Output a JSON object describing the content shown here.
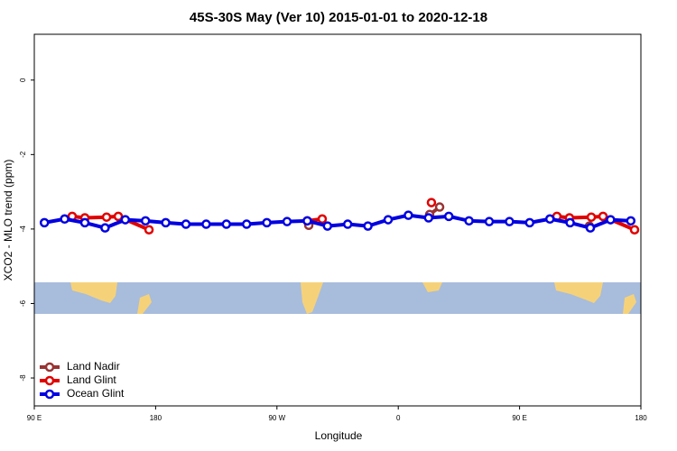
{
  "chart_data": {
    "type": "line",
    "title": "45S-30S May (Ver 10)   2015-01-01 to 2020-12-18",
    "x_label": "Longitude",
    "y_label": "XCO2 - MLO trend (ppm)",
    "xlim": [
      90,
      540
    ],
    "xticks": [
      {
        "value": 90,
        "label": "90 E"
      },
      {
        "value": 180,
        "label": "180"
      },
      {
        "value": 270,
        "label": "90 W"
      },
      {
        "value": 360,
        "label": "0"
      },
      {
        "value": 450,
        "label": "90 E"
      },
      {
        "value": 540,
        "label": "180"
      }
    ],
    "ylim": [
      -8.75,
      1.23
    ],
    "yticks": [
      0,
      -2,
      -4,
      -6,
      -8
    ],
    "legend": "bottom-left",
    "series": [
      {
        "name": "Land Nadir",
        "color": "#993333",
        "x": [
          293.6,
          null,
          383.3,
          390.7,
          null,
          501.8
        ],
        "values": [
          -3.9,
          null,
          -3.61,
          -3.41,
          null,
          -3.92
        ]
      },
      {
        "name": "Land Glint",
        "color": "#e00000",
        "x": [
          118.1,
          127.5,
          143.6,
          152.3,
          175.1,
          null,
          292.5,
          303.6,
          null,
          384.6,
          null,
          477.7,
          487,
          503.2,
          511.9,
          535.3
        ],
        "values": [
          -3.66,
          -3.7,
          -3.68,
          -3.66,
          -4.02,
          null,
          -3.78,
          -3.73,
          null,
          -3.29,
          null,
          -3.66,
          -3.7,
          -3.68,
          -3.66,
          -4.02
        ]
      },
      {
        "name": "Ocean Glint",
        "color": "#0000e0",
        "x": [
          97.5,
          112.5,
          127.5,
          142.5,
          157.5,
          172.5,
          187.5,
          202.5,
          217.5,
          232.5,
          247.5,
          262.5,
          277.5,
          292.5,
          307.5,
          322.5,
          337.5,
          352.5,
          367.5,
          382.5,
          397.5,
          412.5,
          427.5,
          442.5,
          457.5,
          472.5,
          487.5,
          502.5,
          517.5,
          532.5
        ],
        "values": [
          -3.83,
          -3.73,
          -3.83,
          -3.97,
          -3.75,
          -3.78,
          -3.83,
          -3.87,
          -3.87,
          -3.87,
          -3.87,
          -3.83,
          -3.8,
          -3.78,
          -3.92,
          -3.87,
          -3.92,
          -3.75,
          -3.63,
          -3.7,
          -3.66,
          -3.78,
          -3.8,
          -3.8,
          -3.83,
          -3.73,
          -3.83,
          -3.97,
          -3.75,
          -3.78
        ]
      }
    ]
  }
}
